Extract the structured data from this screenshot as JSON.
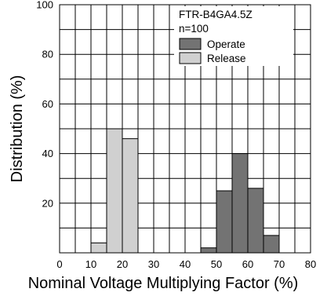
{
  "chart_data": {
    "type": "bar",
    "xlabel": "Nominal Voltage Multiplying Factor (%)",
    "ylabel": "Distribution (%)",
    "xlim": [
      0,
      80
    ],
    "ylim": [
      0,
      100
    ],
    "x_ticks": [
      "0",
      "10",
      "20",
      "30",
      "40",
      "50",
      "60",
      "70",
      "80"
    ],
    "y_ticks": [
      "20",
      "40",
      "60",
      "80",
      "100"
    ],
    "bin_width": 5,
    "model_label": "FTR-B4GA4.5Z",
    "sample_label": "n=100",
    "grid": true,
    "series": [
      {
        "name": "Operate",
        "color": "#737373",
        "bins": [
          {
            "x_start": 45,
            "x_end": 50,
            "value": 2
          },
          {
            "x_start": 50,
            "x_end": 55,
            "value": 25
          },
          {
            "x_start": 55,
            "x_end": 60,
            "value": 40
          },
          {
            "x_start": 60,
            "x_end": 65,
            "value": 26
          },
          {
            "x_start": 65,
            "x_end": 70,
            "value": 7
          }
        ]
      },
      {
        "name": "Release",
        "color": "#d0d0d0",
        "bins": [
          {
            "x_start": 10,
            "x_end": 15,
            "value": 4
          },
          {
            "x_start": 15,
            "x_end": 20,
            "value": 50
          },
          {
            "x_start": 20,
            "x_end": 25,
            "value": 46
          }
        ]
      }
    ]
  }
}
